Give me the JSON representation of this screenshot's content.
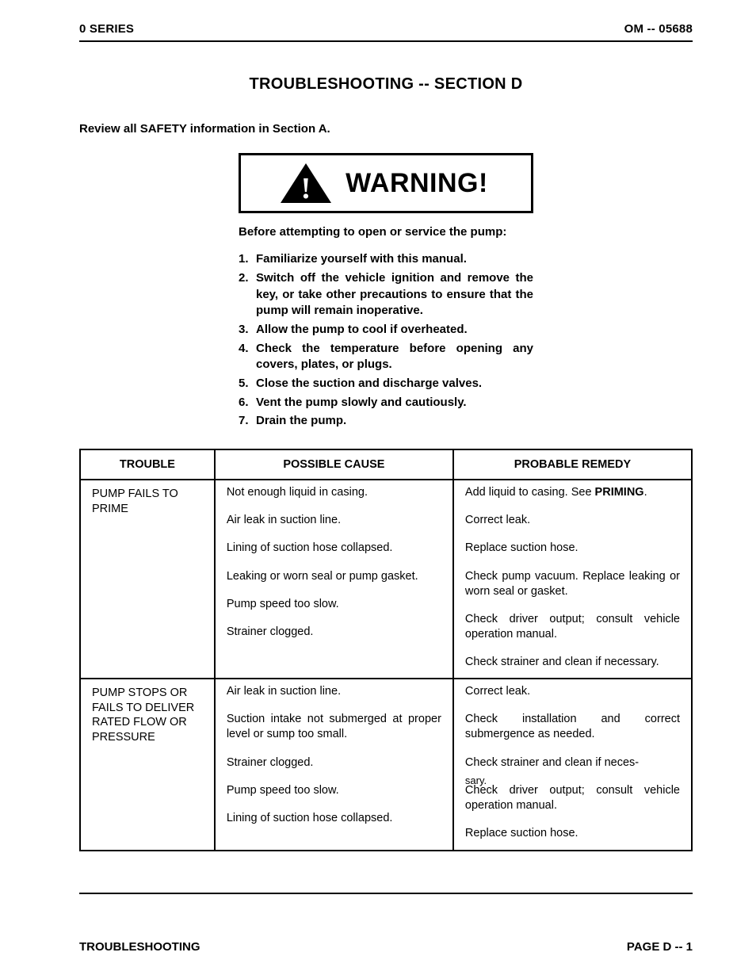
{
  "header": {
    "left": "0 SERIES",
    "right": "OM -- 05688"
  },
  "section_title": "TROUBLESHOOTING -- SECTION D",
  "review_line": "Review all SAFETY information in Section A.",
  "warning": {
    "banner": "WARNING!",
    "intro": "Before attempting to open or service the pump:",
    "items": [
      "Familiarize yourself with this manual.",
      "Switch off the vehicle ignition and remove the key, or take other precautions to ensure that the pump will remain inoperative.",
      "Allow the pump to cool if overheated.",
      "Check the temperature before opening any covers, plates, or plugs.",
      "Close the suction and discharge valves.",
      "Vent the pump slowly and cautiously.",
      "Drain the pump."
    ],
    "tri_fill": "#000000",
    "tri_bang_fill": "#ffffff"
  },
  "table": {
    "headers": {
      "trouble": "TROUBLE",
      "cause": "POSSIBLE CAUSE",
      "remedy": "PROBABLE REMEDY"
    },
    "groups": [
      {
        "trouble": "PUMP FAILS TO PRIME",
        "rows": [
          {
            "cause": "Not enough liquid in casing.",
            "remedy_pre": "Add liquid to casing. See ",
            "remedy_bold": "PRIMING",
            "remedy_post": "."
          },
          {
            "cause": "Air leak in suction line.",
            "remedy": "Correct leak."
          },
          {
            "cause": "Lining of suction hose collapsed.",
            "remedy": "Replace suction hose."
          },
          {
            "cause": "Leaking or worn seal or pump gasket.",
            "remedy": "Check pump vacuum. Replace leaking or worn seal or gasket."
          },
          {
            "cause": "Pump speed too slow.",
            "remedy": "Check driver output; consult vehicle operation manual."
          },
          {
            "cause": "Strainer clogged.",
            "remedy": "Check strainer and clean if necessary."
          }
        ]
      },
      {
        "trouble": "PUMP STOPS OR FAILS TO DELIVER RATED FLOW OR PRESSURE",
        "rows": [
          {
            "cause": "Air leak in suction line.",
            "remedy": "Correct leak."
          },
          {
            "cause": "Suction intake not submerged at proper level or sump too small.",
            "remedy": "Check installation and correct submergence as needed."
          },
          {
            "cause": "Strainer clogged.",
            "remedy": "Check strainer and clean if neces-"
          },
          {
            "cause": "Pump speed too slow.",
            "remedy_pre": "sary.\nCheck driver output; consult vehicle operation manual.",
            "overlap": true
          },
          {
            "cause": "Lining of suction hose collapsed.",
            "remedy": "Replace suction hose."
          }
        ]
      }
    ]
  },
  "footer": {
    "left": "TROUBLESHOOTING",
    "right": "PAGE D -- 1"
  }
}
